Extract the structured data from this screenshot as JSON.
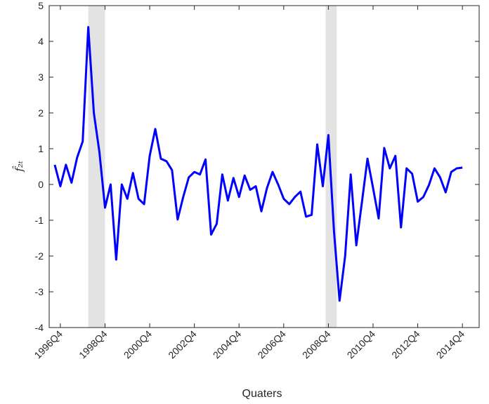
{
  "chart_data": {
    "type": "line",
    "x_label": "Quaters",
    "y_label": "f̂₂ₜ",
    "categories": [
      null,
      null,
      "1996Q4",
      null,
      null,
      null,
      null,
      null,
      null,
      null,
      "1998Q4",
      null,
      null,
      null,
      null,
      null,
      null,
      null,
      "2000Q4",
      null,
      null,
      null,
      null,
      null,
      null,
      null,
      "2002Q4",
      null,
      null,
      null,
      null,
      null,
      null,
      null,
      "2004Q4",
      null,
      null,
      null,
      null,
      null,
      null,
      null,
      "2006Q4",
      null,
      null,
      null,
      null,
      null,
      null,
      null,
      "2008Q4",
      null,
      null,
      null,
      null,
      null,
      null,
      null,
      "2010Q4",
      null,
      null,
      null,
      null,
      null,
      null,
      null,
      "2012Q4",
      null,
      null,
      null,
      null,
      null,
      null,
      null,
      "2014Q4",
      null,
      null,
      null
    ],
    "series": [
      {
        "color": "#0000ff",
        "values": [
          null,
          0.55,
          -0.05,
          0.55,
          0.05,
          0.75,
          1.2,
          4.4,
          2.0,
          0.9,
          -0.65,
          0.0,
          -2.1,
          0.0,
          -0.4,
          0.32,
          -0.4,
          -0.55,
          0.8,
          1.55,
          0.72,
          0.65,
          0.4,
          -0.98,
          -0.35,
          0.2,
          0.35,
          0.28,
          0.7,
          -1.4,
          -1.1,
          0.28,
          -0.45,
          0.18,
          -0.35,
          0.25,
          -0.15,
          -0.05,
          -0.75,
          -0.1,
          0.35,
          0.0,
          -0.4,
          -0.55,
          -0.35,
          -0.2,
          -0.9,
          -0.85,
          1.12,
          -0.05,
          1.38,
          -1.3,
          -3.25,
          -2.0,
          0.28,
          -1.7,
          -0.5,
          0.72,
          -0.1,
          -0.95,
          1.02,
          0.45,
          0.8,
          -1.2,
          0.45,
          0.3,
          -0.48,
          -0.35,
          -0.02,
          0.45,
          0.2,
          -0.22,
          0.35,
          0.45,
          0.47,
          null,
          null,
          null
        ]
      }
    ],
    "shaded_bands": [
      [
        7,
        10
      ],
      [
        49.5,
        51.5
      ]
    ],
    "shade_color": "#e3e3e3",
    "ylim": [
      -4,
      5
    ],
    "yticks": [
      -4,
      -3,
      -2,
      -1,
      0,
      1,
      2,
      3,
      4,
      5
    ]
  }
}
